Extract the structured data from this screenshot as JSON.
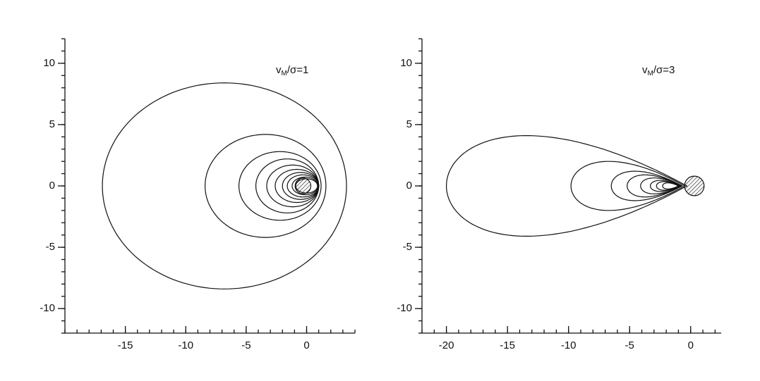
{
  "chart_data": [
    {
      "type": "contour",
      "contour_shape": "ellipse",
      "annotation": {
        "base": "v",
        "subscript": "M",
        "suffix": "/σ=1"
      },
      "xlim": [
        -20,
        4
      ],
      "ylim": [
        -12,
        12
      ],
      "xticks": [
        -15,
        -10,
        -5,
        0
      ],
      "yticks": [
        -10,
        -5,
        0,
        5,
        10
      ],
      "minor_tick_step": 1,
      "body": {
        "x": -0.3,
        "r": 0.65
      },
      "contours": [
        {
          "xmin": -16.9,
          "xmax": 3.3,
          "ymax": 8.4
        },
        {
          "xmin": -8.4,
          "xmax": 1.6,
          "ymax": 4.2
        },
        {
          "xmin": -5.6,
          "xmax": 1.2,
          "ymax": 2.8
        },
        {
          "xmin": -4.2,
          "xmax": 1.0,
          "ymax": 2.2
        },
        {
          "xmin": -3.3,
          "xmax": 1.0,
          "ymax": 1.7
        },
        {
          "xmin": -2.6,
          "xmax": 1.0,
          "ymax": 1.35
        },
        {
          "xmin": -2.0,
          "xmax": 1.0,
          "ymax": 1.1
        },
        {
          "xmin": -1.6,
          "xmax": 1.0,
          "ymax": 0.9
        },
        {
          "xmin": -1.2,
          "xmax": 0.95,
          "ymax": 0.72
        },
        {
          "xmin": -0.9,
          "xmax": 0.9,
          "ymax": 0.58
        }
      ]
    },
    {
      "type": "contour",
      "contour_shape": "teardrop",
      "annotation": {
        "base": "v",
        "subscript": "M",
        "suffix": "/σ=3"
      },
      "xlim": [
        -22,
        2.5
      ],
      "ylim": [
        -12,
        12
      ],
      "xticks": [
        -20,
        -15,
        -10,
        -5,
        0
      ],
      "yticks": [
        -10,
        -5,
        0,
        5,
        10
      ],
      "minor_tick_step": 1,
      "body": {
        "x": 0.3,
        "r": 0.8
      },
      "contours": [
        {
          "xmin": -20,
          "xmax": -0.3,
          "ymax": 4.1
        },
        {
          "xmin": -9.8,
          "xmax": -0.5,
          "ymax": 2.0
        },
        {
          "xmin": -6.5,
          "xmax": -0.7,
          "ymax": 1.2
        },
        {
          "xmin": -5.2,
          "xmax": -0.8,
          "ymax": 0.9
        },
        {
          "xmin": -4.1,
          "xmax": -0.8,
          "ymax": 0.65
        },
        {
          "xmin": -3.3,
          "xmax": -0.9,
          "ymax": 0.45
        },
        {
          "xmin": -2.8,
          "xmax": -0.9,
          "ymax": 0.35
        },
        {
          "xmin": -2.3,
          "xmax": -1.0,
          "ymax": 0.25
        }
      ]
    }
  ]
}
